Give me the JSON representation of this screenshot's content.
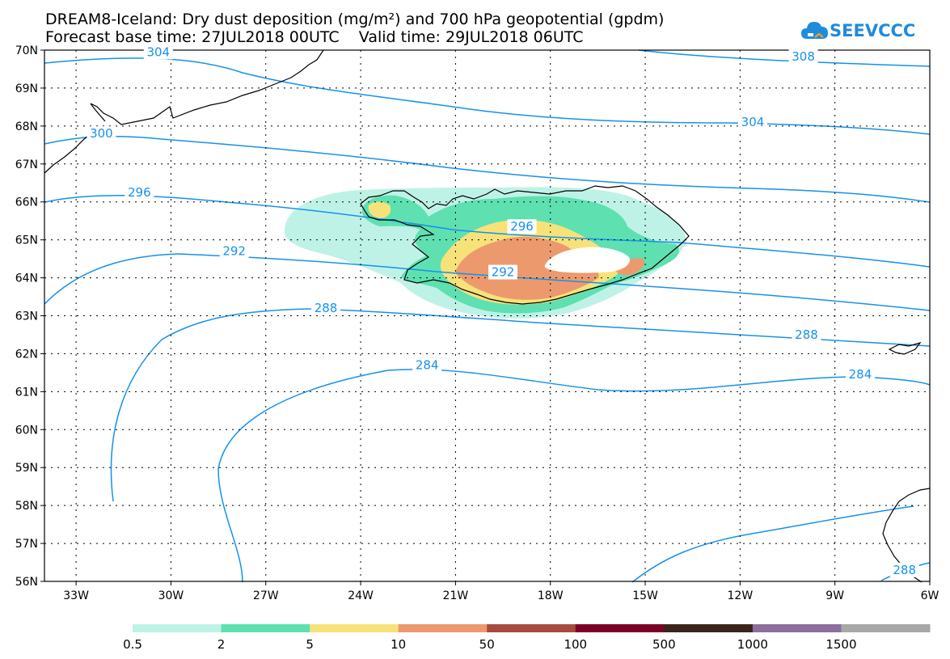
{
  "title": {
    "line1": "DREAM8-Iceland: Dry dust deposition (mg/m²) and 700 hPa geopotential (gpdm)",
    "line2": "Forecast base time: 27JUL2018 00UTC    Valid time: 29JUL2018 06UTC"
  },
  "logo": {
    "text": "SEEVCCC",
    "icon": "cloud-logo-icon",
    "color": "#1f8bdc"
  },
  "axes": {
    "lon_labels": [
      "33W",
      "30W",
      "27W",
      "24W",
      "21W",
      "18W",
      "15W",
      "12W",
      "9W",
      "6W"
    ],
    "lat_labels": [
      "70N",
      "69N",
      "68N",
      "67N",
      "66N",
      "65N",
      "64N",
      "63N",
      "62N",
      "61N",
      "60N",
      "59N",
      "58N",
      "57N",
      "56N"
    ],
    "lon_range": [
      -34,
      -6
    ],
    "lat_range": [
      56,
      70
    ]
  },
  "contours": {
    "color": "#1591ee",
    "labels": [
      {
        "text": "304",
        "lon": -30.4,
        "lat": 69.95
      },
      {
        "text": "308",
        "lon": -10.0,
        "lat": 69.83
      },
      {
        "text": "304",
        "lon": -11.6,
        "lat": 68.1
      },
      {
        "text": "300",
        "lon": -32.2,
        "lat": 67.8
      },
      {
        "text": "296",
        "lon": -31.0,
        "lat": 66.25
      },
      {
        "text": "296",
        "lon": -18.9,
        "lat": 65.35
      },
      {
        "text": "292",
        "lon": -28.0,
        "lat": 64.7
      },
      {
        "text": "292",
        "lon": -19.5,
        "lat": 64.15
      },
      {
        "text": "288",
        "lon": -25.1,
        "lat": 63.2
      },
      {
        "text": "288",
        "lon": -9.9,
        "lat": 62.5
      },
      {
        "text": "284",
        "lon": -21.9,
        "lat": 61.7
      },
      {
        "text": "284",
        "lon": -8.2,
        "lat": 61.45
      },
      {
        "text": "288",
        "lon": -6.8,
        "lat": 56.3
      }
    ]
  },
  "legend": {
    "labels": [
      "0.5",
      "2",
      "5",
      "10",
      "50",
      "100",
      "500",
      "1000",
      "1500"
    ],
    "colors": [
      "#bff2e6",
      "#5ee0b1",
      "#f7e27a",
      "#ec9a6d",
      "#a84b3f",
      "#7b0027",
      "#3a241c",
      "#8c6f9c",
      "#a8a8a8"
    ]
  }
}
